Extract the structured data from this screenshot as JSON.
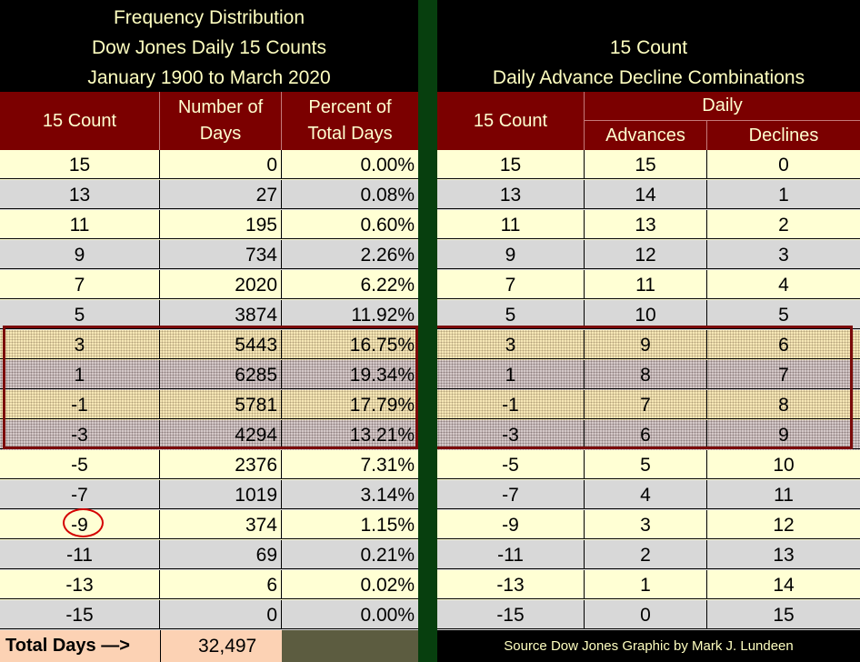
{
  "chart_data": {
    "type": "table",
    "left_table": {
      "title_lines": [
        "Frequency Distribution",
        "Dow Jones Daily 15 Counts",
        "January 1900 to March 2020"
      ],
      "headers": [
        "15 Count",
        "Number of Days",
        "Percent of Total Days"
      ],
      "rows": [
        [
          "15",
          "0",
          "0.00%"
        ],
        [
          "13",
          "27",
          "0.08%"
        ],
        [
          "11",
          "195",
          "0.60%"
        ],
        [
          "9",
          "734",
          "2.26%"
        ],
        [
          "7",
          "2020",
          "6.22%"
        ],
        [
          "5",
          "3874",
          "11.92%"
        ],
        [
          "3",
          "5443",
          "16.75%"
        ],
        [
          "1",
          "6285",
          "19.34%"
        ],
        [
          "-1",
          "5781",
          "17.79%"
        ],
        [
          "-3",
          "4294",
          "13.21%"
        ],
        [
          "-5",
          "2376",
          "7.31%"
        ],
        [
          "-7",
          "1019",
          "3.14%"
        ],
        [
          "-9",
          "374",
          "1.15%"
        ],
        [
          "-11",
          "69",
          "0.21%"
        ],
        [
          "-13",
          "6",
          "0.02%"
        ],
        [
          "-15",
          "0",
          "0.00%"
        ]
      ],
      "total_label": "Total Days —>",
      "total_value": "32,497"
    },
    "right_table": {
      "title_lines": [
        "15 Count",
        "Daily Advance Decline Combinations"
      ],
      "headers": [
        "15 Count",
        "Daily",
        "Advances",
        "Declines"
      ],
      "rows": [
        [
          "15",
          "15",
          "0"
        ],
        [
          "13",
          "14",
          "1"
        ],
        [
          "11",
          "13",
          "2"
        ],
        [
          "9",
          "12",
          "3"
        ],
        [
          "7",
          "11",
          "4"
        ],
        [
          "5",
          "10",
          "5"
        ],
        [
          "3",
          "9",
          "6"
        ],
        [
          "1",
          "8",
          "7"
        ],
        [
          "-1",
          "7",
          "8"
        ],
        [
          "-3",
          "6",
          "9"
        ],
        [
          "-5",
          "5",
          "10"
        ],
        [
          "-7",
          "4",
          "11"
        ],
        [
          "-9",
          "3",
          "12"
        ],
        [
          "-11",
          "2",
          "13"
        ],
        [
          "-13",
          "1",
          "14"
        ],
        [
          "-15",
          "0",
          "15"
        ]
      ],
      "source_note": "Source Dow Jones   Graphic by Mark J. Lundeen"
    },
    "highlighted_counts": [
      "3",
      "1",
      "-1",
      "-3"
    ],
    "circled_count": "-9",
    "colors": {
      "background": "#000000",
      "title_text": "#ffffc0",
      "header_bg": "#7b0000",
      "row_light": "#ffffd4",
      "row_gray": "#d8d8d8",
      "highlight_border": "#7b0a0a",
      "circle": "#d40000",
      "total_bg": "#fcd2b4",
      "divider": "#073f0e"
    }
  }
}
